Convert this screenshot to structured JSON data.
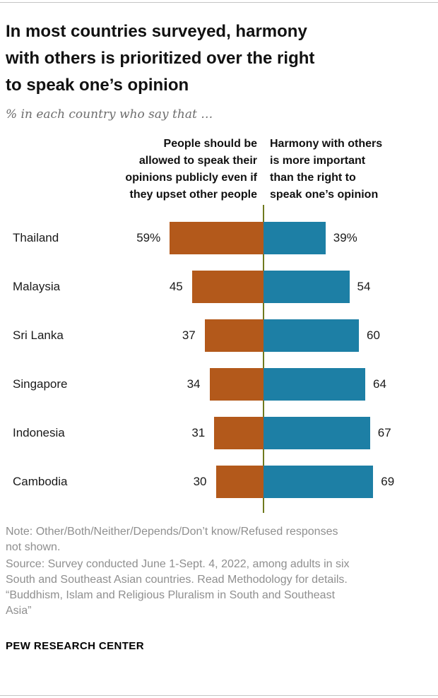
{
  "header": {
    "title": "In most countries surveyed, harmony\nwith others is prioritized over the right\nto speak one’s opinion",
    "subtitle": "% in each country who say that …"
  },
  "chart_data": {
    "type": "bar",
    "orientation": "horizontal-diverging",
    "title": "In most countries surveyed, harmony with others is prioritized over the right to speak one’s opinion",
    "subtitle": "% in each country who say that …",
    "categories": [
      "Thailand",
      "Malaysia",
      "Sri Lanka",
      "Singapore",
      "Indonesia",
      "Cambodia"
    ],
    "series": [
      {
        "name": "People should be\nallowed to speak their\nopinions publicly even if\nthey upset other people",
        "side": "left",
        "color": "#b3591b",
        "values": [
          59,
          45,
          37,
          34,
          31,
          30
        ],
        "value_labels": [
          "59%",
          "45",
          "37",
          "34",
          "31",
          "30"
        ]
      },
      {
        "name": "Harmony with others\nis more important\nthan the right to\nspeak one’s opinion",
        "side": "right",
        "color": "#1d7fa5",
        "values": [
          39,
          54,
          60,
          64,
          67,
          69
        ],
        "value_labels": [
          "39%",
          "54",
          "60",
          "64",
          "67",
          "69"
        ]
      }
    ],
    "value_unit": "%",
    "xlim_each_side": [
      0,
      100
    ],
    "center_line_color": "#707a1e",
    "grid": false,
    "legend_position": "column-headers-above-chart"
  },
  "footer": {
    "note": "Note: Other/Both/Neither/Depends/Don’t know/Refused responses\nnot shown.",
    "source": "Source: Survey conducted June 1-Sept. 4, 2022, among adults in six\nSouth and Southeast Asian countries. Read Methodology for details.\n“Buddhism, Islam and Religious Pluralism in South and Southeast\nAsia”",
    "brand": "PEW RESEARCH CENTER"
  }
}
